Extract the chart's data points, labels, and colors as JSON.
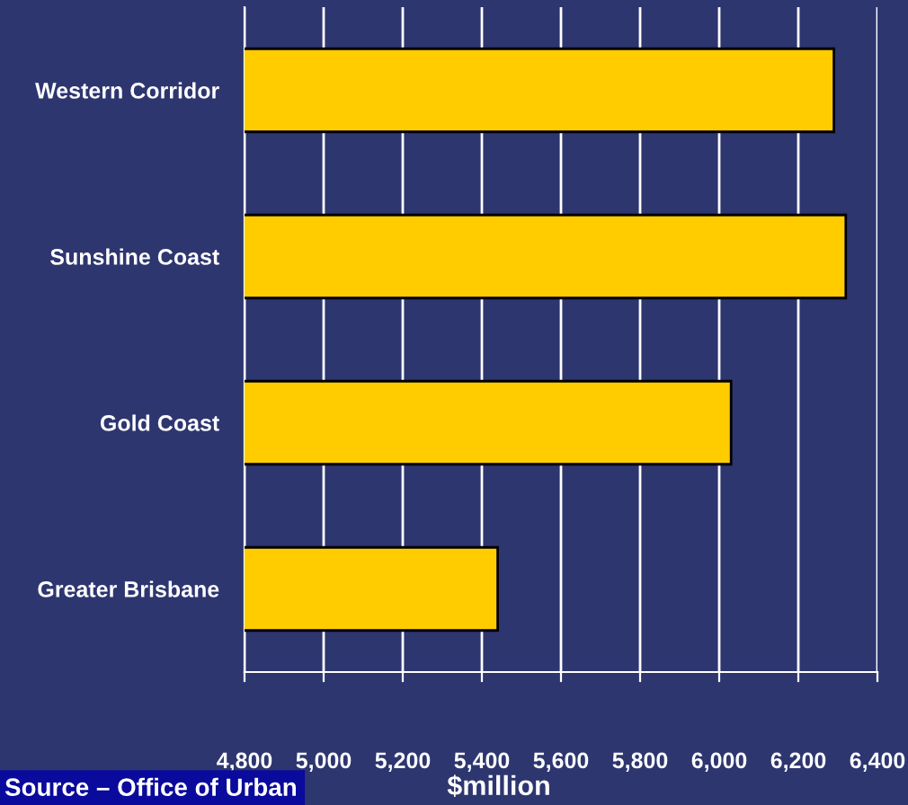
{
  "chart_data": {
    "type": "bar",
    "orientation": "horizontal",
    "categories": [
      "Western Corridor",
      "Sunshine Coast",
      "Gold Coast",
      "Greater Brisbane"
    ],
    "values": [
      6290,
      6320,
      6030,
      5440
    ],
    "color": "#ffcc00",
    "xlim": [
      4800,
      6400
    ],
    "xticks": [
      {
        "value": 4800,
        "label": "4,800"
      },
      {
        "value": 5000,
        "label": "5,000"
      },
      {
        "value": 5200,
        "label": "5,200"
      },
      {
        "value": 5400,
        "label": "5,400"
      },
      {
        "value": 5600,
        "label": "5,600"
      },
      {
        "value": 5800,
        "label": "5,800"
      },
      {
        "value": 6000,
        "label": "6,000"
      },
      {
        "value": 6200,
        "label": "6,200"
      },
      {
        "value": 6400,
        "label": "6,400"
      }
    ],
    "xlabel": "$million",
    "grid": "x",
    "annotations": [
      "Source – Office of Urban"
    ]
  }
}
